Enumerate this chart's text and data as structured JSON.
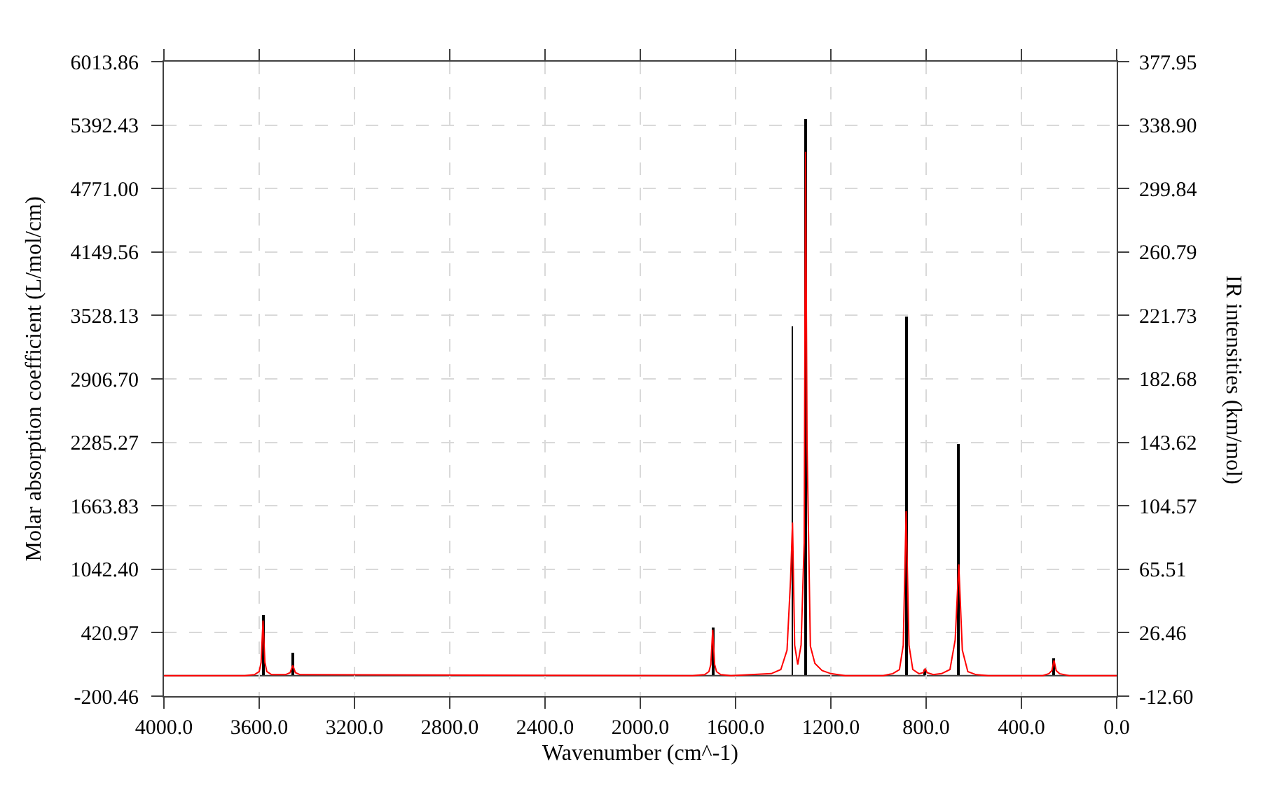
{
  "chart_data": {
    "type": "line",
    "xlabel": "Wavenumber (cm^-1)",
    "ylabel": "Molar absorption coefficient (L/mol/cm)",
    "y2label": "IR intensities (km/mol)",
    "xlim": [
      4000,
      0
    ],
    "xticks": [
      {
        "value": 4000,
        "label": "4000.0"
      },
      {
        "value": 3600,
        "label": "3600.0"
      },
      {
        "value": 3200,
        "label": "3200.0"
      },
      {
        "value": 2800,
        "label": "2800.0"
      },
      {
        "value": 2400,
        "label": "2400.0"
      },
      {
        "value": 2000,
        "label": "2000.0"
      },
      {
        "value": 1600,
        "label": "1600.0"
      },
      {
        "value": 1200,
        "label": "1200.0"
      },
      {
        "value": 800,
        "label": "800.0"
      },
      {
        "value": 400,
        "label": "400.0"
      },
      {
        "value": 0,
        "label": "0.0"
      }
    ],
    "ylim": [
      -200.46,
      6013.86
    ],
    "yticks": [
      -200.46,
      420.97,
      {
        "value": 1042.4,
        "label": "1042.40"
      },
      1663.83,
      2285.27,
      {
        "value": 2906.7,
        "label": "2906.70"
      },
      3528.13,
      4149.56,
      {
        "value": 4771,
        "label": "4771.00"
      },
      5392.43,
      6013.86
    ],
    "y2lim": [
      -12.6,
      377.95
    ],
    "y2ticks": [
      {
        "value": -12.6,
        "label": "-12.60"
      },
      26.46,
      65.51,
      104.57,
      143.62,
      182.68,
      221.73,
      260.79,
      299.84,
      {
        "value": 338.9,
        "label": "338.90"
      },
      377.95
    ],
    "grid": true,
    "ref_lines": [
      {
        "axis": "y",
        "value": 0,
        "color": "#404040"
      }
    ],
    "series": [
      {
        "type": "bar",
        "axis": "y2",
        "color": "#000000",
        "x": [
          3584,
          3459,
          1696,
          1361,
          1306,
          884,
          804,
          663,
          263
        ],
        "values": [
          37,
          14,
          30,
          215,
          343,
          221,
          4,
          143,
          11
        ]
      },
      {
        "axis": "y",
        "color": "#ff0000",
        "x": [
          4000,
          3660,
          3620,
          3600,
          3592,
          3584,
          3576,
          3568,
          3548,
          3490,
          3470,
          3459,
          3448,
          3428,
          1780,
          1730,
          1712,
          1704,
          1696,
          1688,
          1680,
          1662,
          1620,
          1450,
          1410,
          1384,
          1369,
          1361,
          1352,
          1339,
          1325,
          1312,
          1306,
          1300,
          1286,
          1267,
          1237,
          1200,
          1140,
          980,
          940,
          912,
          896,
          884,
          872,
          856,
          830,
          812,
          804,
          796,
          770,
          735,
          700,
          678,
          663,
          648,
          625,
          590,
          540,
          310,
          285,
          272,
          263,
          254,
          240,
          200,
          0
        ],
        "values": [
          0,
          0,
          10,
          40,
          130,
          540,
          130,
          40,
          10,
          10,
          30,
          100,
          30,
          10,
          0,
          10,
          40,
          110,
          450,
          110,
          40,
          10,
          0,
          20,
          60,
          250,
          950,
          1500,
          300,
          110,
          300,
          1300,
          5130,
          2270,
          290,
          120,
          50,
          20,
          0,
          0,
          20,
          60,
          300,
          1610,
          300,
          60,
          20,
          30,
          70,
          30,
          10,
          20,
          60,
          350,
          1090,
          250,
          40,
          10,
          0,
          0,
          20,
          50,
          150,
          50,
          20,
          0,
          0
        ]
      }
    ]
  }
}
